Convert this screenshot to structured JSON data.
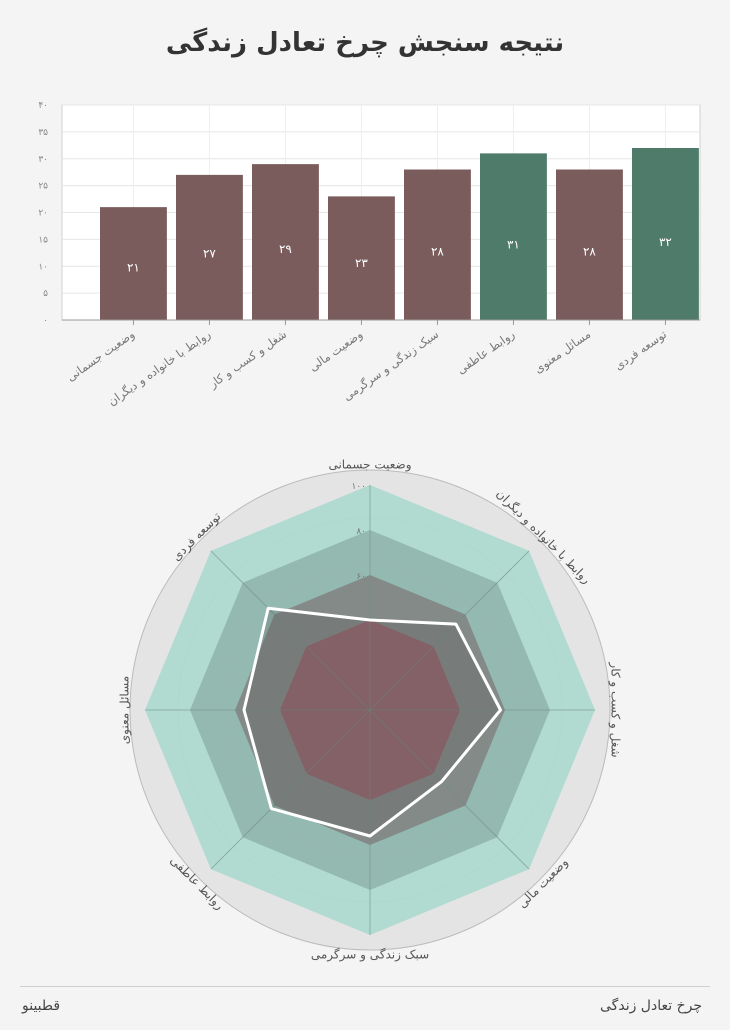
{
  "title": "نتیجه سنجش چرخ تعادل زندگی",
  "footer": {
    "brand": "قطبینو",
    "caption": "چرخ تعادل زندگی"
  },
  "colors": {
    "bar_default": "#7a5c5c",
    "bar_highlight": "#4f7b6a",
    "radar_outer": "#a8d8cc",
    "radar_mid": "#8fb3aa",
    "radar_inner": "#7d7b7b",
    "radar_core": "#9a5c68",
    "radar_user_line": "#ffffff"
  },
  "chart_data": [
    {
      "type": "bar",
      "title": "",
      "xlabel": "",
      "ylabel": "",
      "ylim": [
        0,
        40
      ],
      "yticks": [
        "۰",
        "۵",
        "۱۰",
        "۱۵",
        "۲۰",
        "۲۵",
        "۳۰",
        "۳۵",
        "۴۰"
      ],
      "grid": true,
      "categories": [
        "وضعیت جسمانی",
        "روابط با خانواده و دیگران",
        "شغل و کسب و کار",
        "وضعیت مالی",
        "سبک زندگی و سرگرمی",
        "روابط عاطفی",
        "مسائل معنوی",
        "توسعه فردی"
      ],
      "values": [
        21,
        27,
        29,
        23,
        28,
        31,
        28,
        32
      ],
      "value_labels": [
        "۲۱",
        "۲۷",
        "۲۹",
        "۲۳",
        "۲۸",
        "۳۱",
        "۲۸",
        "۳۲"
      ],
      "highlighted": [
        false,
        false,
        false,
        false,
        false,
        true,
        false,
        true
      ]
    },
    {
      "type": "radar",
      "axes": [
        "وضعیت جسمانی",
        "روابط با خانواده و دیگران",
        "شغل و کسب و کار",
        "وضعیت مالی",
        "سبک زندگی و سرگرمی",
        "روابط عاطفی",
        "مسائل معنوی",
        "توسعه فردی"
      ],
      "rlim": [
        0,
        100
      ],
      "rticks": [
        "۱۰۰",
        "۸۰",
        "۶۰"
      ],
      "bands": [
        100,
        80,
        60,
        40
      ],
      "user_values": [
        40,
        54,
        58,
        45,
        56,
        62,
        56,
        64
      ]
    }
  ]
}
